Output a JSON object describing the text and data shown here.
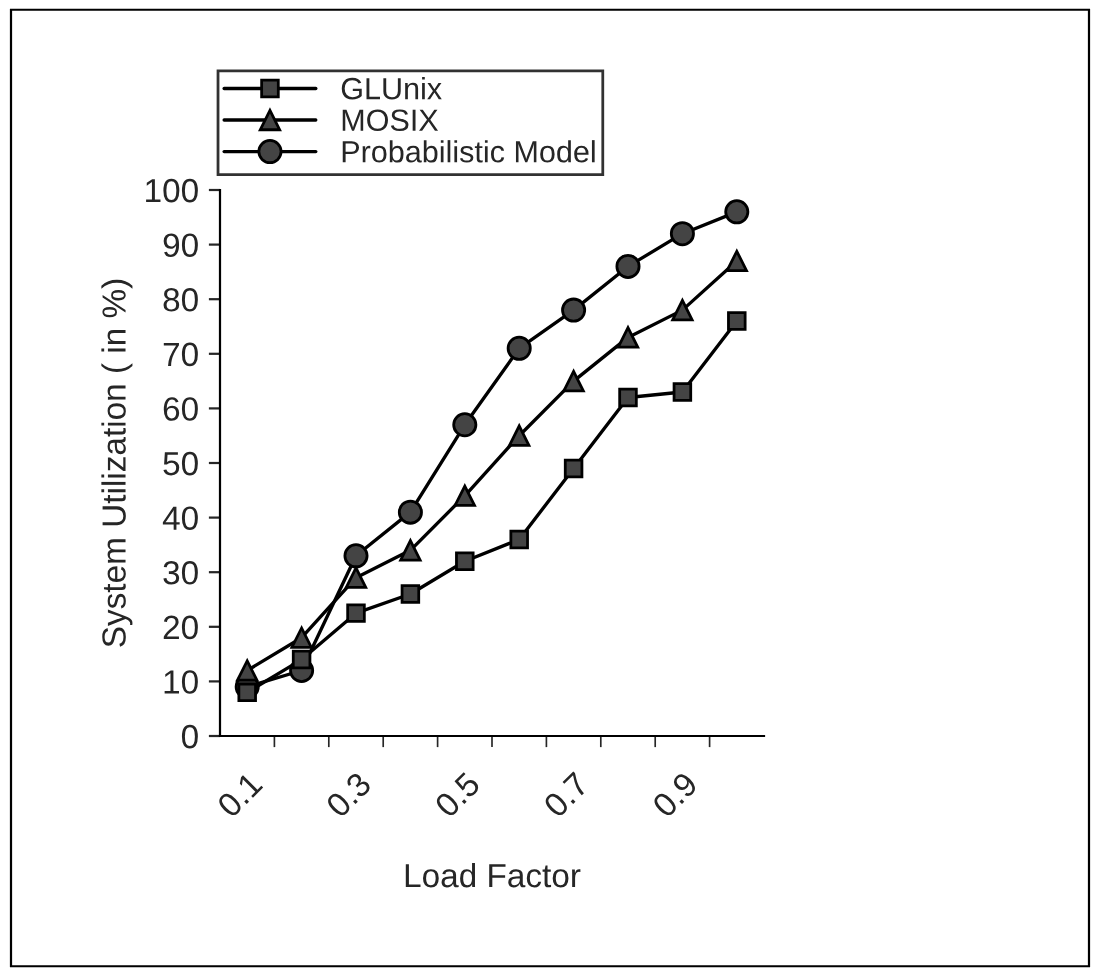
{
  "chart_data": {
    "type": "line",
    "xlabel": "Load Factor",
    "ylabel": "System Utilization ( in %)",
    "categories": [
      "0.1",
      null,
      "0.3",
      null,
      "0.5",
      null,
      "0.7",
      null,
      "0.9",
      null
    ],
    "series": [
      {
        "name": "GLUnix",
        "color": "#000000",
        "marker": "square",
        "values": [
          8,
          14,
          22.5,
          26,
          32,
          36,
          49,
          62,
          63,
          76
        ]
      },
      {
        "name": "MOSIX",
        "color": "#000000",
        "marker": "triangle",
        "values": [
          12,
          18,
          29,
          34,
          44,
          55,
          65,
          73,
          78,
          87
        ]
      },
      {
        "name": "Probabilistic Model",
        "color": "#000000",
        "marker": "circle",
        "values": [
          9,
          12,
          33,
          41,
          57,
          71,
          78,
          86,
          92,
          96
        ]
      }
    ],
    "ylim": [
      0,
      100
    ],
    "yticks": [
      0,
      10,
      20,
      30,
      40,
      50,
      60,
      70,
      80,
      90,
      100
    ],
    "grid": false,
    "legend": "top",
    "line_style": "solid"
  }
}
